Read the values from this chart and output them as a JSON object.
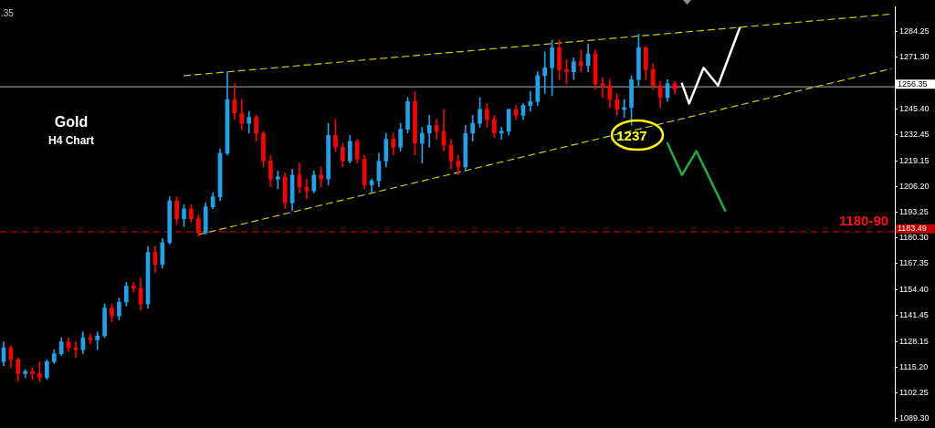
{
  "chart_data": {
    "type": "candlestick",
    "title": "Gold",
    "subtitle": "H4 Chart",
    "categories": [
      null,
      null,
      null,
      null,
      null,
      null,
      null,
      null,
      null,
      null,
      null,
      null,
      null,
      null,
      null,
      null,
      null,
      null,
      null,
      null,
      null,
      null,
      null,
      null,
      null,
      null,
      null,
      null,
      null,
      null,
      null,
      null,
      null,
      null,
      null,
      null,
      null,
      null,
      null,
      null,
      null,
      null,
      null,
      null,
      null,
      null,
      null,
      null,
      null,
      null,
      null,
      null,
      null,
      null,
      null,
      null,
      null,
      null,
      null,
      null,
      null,
      null,
      null,
      null,
      null,
      null,
      null,
      null,
      null,
      null,
      null,
      null,
      null,
      null,
      null,
      null,
      null,
      null,
      null,
      null,
      null,
      null,
      null,
      null,
      null,
      null,
      null,
      null,
      null,
      null,
      null,
      null,
      null,
      null,
      null,
      null,
      null,
      null,
      null,
      null,
      null,
      null,
      null,
      null,
      null,
      null,
      null,
      null,
      null,
      null,
      null,
      null,
      null,
      null,
      null,
      null,
      null,
      null,
      null,
      null,
      null,
      null,
      null,
      null
    ],
    "ohlc": [
      [
        1118,
        1128,
        1116,
        1125
      ],
      [
        1125,
        1126,
        1115,
        1119
      ],
      [
        1119,
        1120,
        1108,
        1112
      ],
      [
        1112,
        1114,
        1110,
        1113
      ],
      [
        1113,
        1115,
        1109,
        1112
      ],
      [
        1112,
        1118,
        1108,
        1110
      ],
      [
        1110,
        1119,
        1109,
        1118
      ],
      [
        1118,
        1124,
        1117,
        1122
      ],
      [
        1122,
        1130,
        1121,
        1128
      ],
      [
        1128,
        1130,
        1123,
        1125
      ],
      [
        1125,
        1128,
        1120,
        1124
      ],
      [
        1124,
        1133,
        1122,
        1130
      ],
      [
        1130,
        1132,
        1127,
        1129
      ],
      [
        1129,
        1133,
        1124,
        1131
      ],
      [
        1131,
        1147,
        1130,
        1145
      ],
      [
        1145,
        1147,
        1138,
        1141
      ],
      [
        1141,
        1150,
        1139,
        1148
      ],
      [
        1148,
        1158,
        1146,
        1156
      ],
      [
        1156,
        1158,
        1153,
        1155
      ],
      [
        1155,
        1160,
        1144,
        1147
      ],
      [
        1147,
        1176,
        1145,
        1173
      ],
      [
        1173,
        1176,
        1163,
        1167
      ],
      [
        1167,
        1180,
        1165,
        1178
      ],
      [
        1178,
        1201,
        1177,
        1199
      ],
      [
        1199,
        1201,
        1187,
        1190
      ],
      [
        1190,
        1197,
        1186,
        1195
      ],
      [
        1195,
        1197,
        1188,
        1190
      ],
      [
        1190,
        1192,
        1181,
        1183
      ],
      [
        1183,
        1198,
        1182,
        1196
      ],
      [
        1196,
        1203,
        1195,
        1201
      ],
      [
        1201,
        1225,
        1199,
        1223
      ],
      [
        1223,
        1264,
        1222,
        1250
      ],
      [
        1250,
        1258,
        1240,
        1243
      ],
      [
        1243,
        1250,
        1235,
        1238
      ],
      [
        1238,
        1244,
        1233,
        1241
      ],
      [
        1241,
        1242,
        1229,
        1233
      ],
      [
        1233,
        1234,
        1216,
        1219
      ],
      [
        1219,
        1222,
        1206,
        1210
      ],
      [
        1210,
        1214,
        1205,
        1211
      ],
      [
        1211,
        1213,
        1195,
        1198
      ],
      [
        1198,
        1215,
        1194,
        1212
      ],
      [
        1212,
        1218,
        1203,
        1206
      ],
      [
        1206,
        1210,
        1200,
        1204
      ],
      [
        1204,
        1214,
        1203,
        1212
      ],
      [
        1212,
        1216,
        1206,
        1210
      ],
      [
        1210,
        1238,
        1207,
        1232
      ],
      [
        1232,
        1240,
        1224,
        1226
      ],
      [
        1226,
        1228,
        1216,
        1219
      ],
      [
        1219,
        1232,
        1218,
        1229
      ],
      [
        1229,
        1230,
        1218,
        1220
      ],
      [
        1220,
        1222,
        1205,
        1207
      ],
      [
        1207,
        1210,
        1203,
        1209
      ],
      [
        1209,
        1223,
        1206,
        1219
      ],
      [
        1219,
        1233,
        1216,
        1230
      ],
      [
        1230,
        1233,
        1222,
        1226
      ],
      [
        1226,
        1238,
        1224,
        1235
      ],
      [
        1235,
        1251,
        1233,
        1249
      ],
      [
        1249,
        1254,
        1222,
        1228
      ],
      [
        1228,
        1236,
        1218,
        1233
      ],
      [
        1233,
        1242,
        1226,
        1237
      ],
      [
        1237,
        1240,
        1230,
        1234
      ],
      [
        1234,
        1245,
        1224,
        1227
      ],
      [
        1227,
        1230,
        1215,
        1219
      ],
      [
        1219,
        1222,
        1212,
        1216
      ],
      [
        1216,
        1237,
        1214,
        1233
      ],
      [
        1233,
        1242,
        1229,
        1238
      ],
      [
        1238,
        1251,
        1236,
        1245
      ],
      [
        1245,
        1248,
        1236,
        1240
      ],
      [
        1240,
        1242,
        1231,
        1233
      ],
      [
        1233,
        1236,
        1230,
        1234
      ],
      [
        1234,
        1245,
        1232,
        1245
      ],
      [
        1245,
        1247,
        1240,
        1242
      ],
      [
        1242,
        1248,
        1240,
        1247
      ],
      [
        1247,
        1254,
        1244,
        1249
      ],
      [
        1249,
        1264,
        1247,
        1262
      ],
      [
        1262,
        1274,
        1253,
        1266
      ],
      [
        1266,
        1280,
        1252,
        1276
      ],
      [
        1276,
        1280,
        1260,
        1265
      ],
      [
        1265,
        1270,
        1258,
        1264
      ],
      [
        1264,
        1271,
        1260,
        1269
      ],
      [
        1269,
        1275,
        1264,
        1267
      ],
      [
        1267,
        1278,
        1264,
        1273
      ],
      [
        1273,
        1275,
        1255,
        1258
      ],
      [
        1258,
        1261,
        1251,
        1257
      ],
      [
        1257,
        1260,
        1246,
        1250
      ],
      [
        1250,
        1253,
        1242,
        1245
      ],
      [
        1245,
        1250,
        1241,
        1246
      ],
      [
        1246,
        1262,
        1237,
        1260
      ],
      [
        1260,
        1283,
        1257,
        1276
      ],
      [
        1276,
        1277,
        1260,
        1265
      ],
      [
        1265,
        1268,
        1255,
        1257
      ],
      [
        1257,
        1259,
        1246,
        1251
      ],
      [
        1251,
        1260,
        1249,
        1258
      ],
      [
        1258,
        1259,
        1253,
        1255
      ],
      null,
      null,
      null,
      null,
      null,
      null,
      null,
      null,
      null,
      null,
      null,
      null,
      null,
      null,
      null,
      null,
      null,
      null,
      null,
      null,
      null,
      null,
      null,
      null,
      null,
      null,
      null,
      null,
      null,
      null
    ],
    "colors": [
      "#1ca3ec",
      "#ff0000",
      "#ff0000",
      "#1ca3ec",
      "#ff0000",
      "#ff0000",
      "#1ca3ec",
      "#1ca3ec",
      "#1ca3ec",
      "#ff0000",
      "#ff0000",
      "#1ca3ec",
      "#ff0000",
      "#1ca3ec",
      "#1ca3ec",
      "#ff0000",
      "#1ca3ec",
      "#1ca3ec",
      "#ff0000",
      "#ff0000",
      "#1ca3ec",
      "#ff0000",
      "#1ca3ec",
      "#1ca3ec",
      "#ff0000",
      "#1ca3ec",
      "#ff0000",
      "#ff0000",
      "#1ca3ec",
      "#1ca3ec",
      "#1ca3ec",
      "#1ca3ec",
      "#ff0000",
      "#ff0000",
      "#1ca3ec",
      "#ff0000",
      "#ff0000",
      "#ff0000",
      "#1ca3ec",
      "#ff0000",
      "#1ca3ec",
      "#ff0000",
      "#ff0000",
      "#1ca3ec",
      "#ff0000",
      "#1ca3ec",
      "#ff0000",
      "#ff0000",
      "#1ca3ec",
      "#ff0000",
      "#ff0000",
      "#1ca3ec",
      "#1ca3ec",
      "#1ca3ec",
      "#ff0000",
      "#1ca3ec",
      "#1ca3ec",
      "#ff0000",
      "#1ca3ec",
      "#1ca3ec",
      "#ff0000",
      "#ff0000",
      "#ff0000",
      "#ff0000",
      "#1ca3ec",
      "#1ca3ec",
      "#1ca3ec",
      "#ff0000",
      "#ff0000",
      "#1ca3ec",
      "#1ca3ec",
      "#ff0000",
      "#1ca3ec",
      "#1ca3ec",
      "#1ca3ec",
      "#1ca3ec",
      "#1ca3ec",
      "#ff0000",
      "#ff0000",
      "#1ca3ec",
      "#ff0000",
      "#1ca3ec",
      "#ff0000",
      "#ff0000",
      "#ff0000",
      "#ff0000",
      "#1ca3ec",
      "#1ca3ec",
      "#1ca3ec",
      "#ff0000",
      "#ff0000",
      "#ff0000",
      "#1ca3ec",
      "#ff0000",
      null,
      null,
      null,
      null,
      null,
      null,
      null,
      null,
      null,
      null,
      null,
      null,
      null,
      null,
      null,
      null,
      null,
      null,
      null,
      null,
      null,
      null,
      null,
      null,
      null,
      null,
      null,
      null,
      null,
      null
    ],
    "series": [
      {
        "type": "line",
        "color": "#cccc00",
        "line_style": "dashed",
        "values": [
          null,
          null,
          null,
          null,
          null,
          null,
          null,
          null,
          null,
          null,
          null,
          null,
          null,
          null,
          null,
          null,
          null,
          null,
          null,
          null,
          null,
          null,
          null,
          null,
          null,
          1262,
          null,
          null,
          null,
          null,
          null,
          null,
          null,
          null,
          null,
          null,
          null,
          null,
          null,
          null,
          null,
          null,
          null,
          null,
          null,
          null,
          null,
          null,
          null,
          null,
          null,
          null,
          null,
          null,
          null,
          null,
          null,
          null,
          null,
          null,
          null,
          null,
          null,
          null,
          null,
          null,
          null,
          null,
          null,
          null,
          null,
          null,
          null,
          null,
          null,
          null,
          null,
          null,
          null,
          null,
          null,
          null,
          null,
          null,
          null,
          null,
          null,
          null,
          null,
          null,
          null,
          null,
          null,
          null,
          null,
          null,
          null,
          null,
          null,
          null,
          null,
          null,
          null,
          null,
          null,
          null,
          null,
          null,
          null,
          null,
          null,
          null,
          null,
          null,
          null,
          null,
          null,
          null,
          null,
          null,
          null,
          null,
          null,
          1293
        ]
      },
      {
        "type": "line",
        "color": "#cccc00",
        "line_style": "dashed",
        "values": [
          null,
          null,
          null,
          null,
          null,
          null,
          null,
          null,
          null,
          null,
          null,
          null,
          null,
          null,
          null,
          null,
          null,
          null,
          null,
          null,
          null,
          null,
          null,
          null,
          null,
          null,
          null,
          1182,
          null,
          null,
          null,
          null,
          null,
          null,
          null,
          null,
          null,
          null,
          null,
          null,
          null,
          null,
          null,
          null,
          null,
          null,
          null,
          null,
          null,
          null,
          null,
          null,
          null,
          null,
          null,
          null,
          null,
          null,
          null,
          null,
          null,
          null,
          null,
          null,
          null,
          null,
          null,
          null,
          null,
          null,
          null,
          null,
          null,
          null,
          null,
          null,
          null,
          null,
          null,
          null,
          null,
          null,
          null,
          null,
          null,
          null,
          null,
          null,
          null,
          null,
          null,
          null,
          null,
          null,
          null,
          null,
          null,
          null,
          null,
          null,
          null,
          null,
          null,
          null,
          null,
          null,
          null,
          null,
          null,
          null,
          null,
          null,
          null,
          null,
          null,
          null,
          null,
          null,
          null,
          null,
          null,
          null,
          null,
          1265.5
        ]
      },
      {
        "type": "line",
        "color": "#ffffff",
        "line_style": "solid",
        "values": [
          null,
          null,
          null,
          null,
          null,
          null,
          null,
          null,
          null,
          null,
          null,
          null,
          null,
          null,
          null,
          null,
          null,
          null,
          null,
          null,
          null,
          null,
          null,
          null,
          null,
          null,
          null,
          null,
          null,
          null,
          null,
          null,
          null,
          null,
          null,
          null,
          null,
          null,
          null,
          null,
          null,
          null,
          null,
          null,
          null,
          null,
          null,
          null,
          null,
          null,
          null,
          null,
          null,
          null,
          null,
          null,
          null,
          null,
          null,
          null,
          null,
          null,
          null,
          null,
          null,
          null,
          null,
          null,
          null,
          null,
          null,
          null,
          null,
          null,
          null,
          null,
          null,
          null,
          null,
          null,
          null,
          null,
          null,
          null,
          null,
          null,
          null,
          null,
          null,
          null,
          null,
          null,
          null,
          null,
          1258,
          1248,
          null,
          1266,
          null,
          1257,
          null,
          null,
          1286,
          null,
          null,
          null,
          null,
          null,
          null,
          null,
          null,
          null,
          null,
          null,
          null,
          null,
          null,
          null,
          null,
          null,
          null,
          null,
          null,
          null
        ]
      },
      {
        "type": "line",
        "color": "#22aa44",
        "line_style": "solid",
        "values": [
          null,
          null,
          null,
          null,
          null,
          null,
          null,
          null,
          null,
          null,
          null,
          null,
          null,
          null,
          null,
          null,
          null,
          null,
          null,
          null,
          null,
          null,
          null,
          null,
          null,
          null,
          null,
          null,
          null,
          null,
          null,
          null,
          null,
          null,
          null,
          null,
          null,
          null,
          null,
          null,
          null,
          null,
          null,
          null,
          null,
          null,
          null,
          null,
          null,
          null,
          null,
          null,
          null,
          null,
          null,
          null,
          null,
          null,
          null,
          null,
          null,
          null,
          null,
          null,
          null,
          null,
          null,
          null,
          null,
          null,
          null,
          null,
          null,
          null,
          null,
          null,
          null,
          null,
          null,
          null,
          null,
          null,
          null,
          null,
          null,
          null,
          null,
          null,
          null,
          null,
          null,
          null,
          1228,
          null,
          1212,
          null,
          1224,
          null,
          null,
          null,
          1194,
          null,
          null,
          null,
          null,
          null,
          null,
          null,
          null,
          null,
          null,
          null,
          null,
          null,
          null,
          null,
          null,
          null,
          null,
          null,
          null,
          null,
          null,
          null
        ]
      }
    ],
    "ylim": [
      1088,
      1296.7
    ],
    "yticks": [
      {
        "value": 1089.3,
        "label": "1089.30"
      },
      1102.25,
      {
        "value": 1115.2,
        "label": "1115.20"
      },
      1128.15,
      {
        "value": 1141.45,
        "label": "1141.45"
      },
      {
        "value": 1154.4,
        "label": "1154.40"
      },
      1167.35,
      {
        "value": 1180.3,
        "label": "1180.30"
      },
      1193.25,
      {
        "value": 1206.2,
        "label": "1206.20"
      },
      1219.15,
      1232.45,
      {
        "value": 1245.4,
        "label": "1245.40"
      },
      {
        "value": 1271.3,
        "label": "1271.30"
      },
      1284.25
    ],
    "ref_lines": [
      {
        "axis": "y",
        "value": 1256.35,
        "label": "1256.35",
        "color": "#8c8c8c",
        "line_style": "solid"
      },
      {
        "axis": "y",
        "value": 1183.49,
        "label": "1183.49",
        "color": "#c00000",
        "line_style": "dashed"
      }
    ],
    "annotations": [
      ".35",
      {
        "text": "1180-90",
        "y": 1183.49
      },
      {
        "text": "1237",
        "y": 1237
      }
    ]
  }
}
